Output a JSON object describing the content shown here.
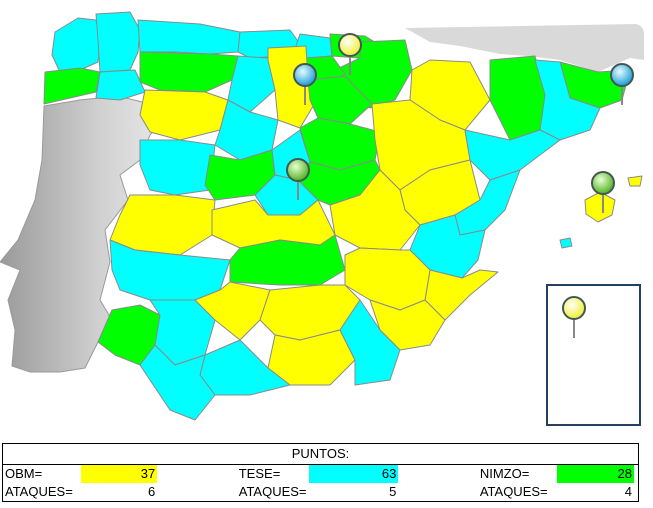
{
  "colors": {
    "obm": "#ffff00",
    "tese": "#00ffff",
    "nimzo": "#00ff00",
    "sea": "#ffffff",
    "portugal": "#c8c8c8",
    "france": "#d9d9d9",
    "border": "#8a8a8a",
    "canarias_box": "#243f60"
  },
  "markers": [
    {
      "name": "cyan-pin",
      "color": "#5fd0ff"
    },
    {
      "name": "yellow-pin",
      "color": "#ffff66"
    },
    {
      "name": "green-pin",
      "color": "#88dd44"
    }
  ],
  "table": {
    "title": "PUNTOS:",
    "teams": [
      {
        "label": "OBM=",
        "points": "37",
        "attacks_label": "ATAQUES=",
        "attacks": "6",
        "color": "#ffff00"
      },
      {
        "label": "TESE=",
        "points": "63",
        "attacks_label": "ATAQUES=",
        "attacks": "5",
        "color": "#00ffff"
      },
      {
        "label": "NIMZO=",
        "points": "28",
        "attacks_label": "ATAQUES=",
        "attacks": "4",
        "color": "#00ff00"
      }
    ]
  }
}
